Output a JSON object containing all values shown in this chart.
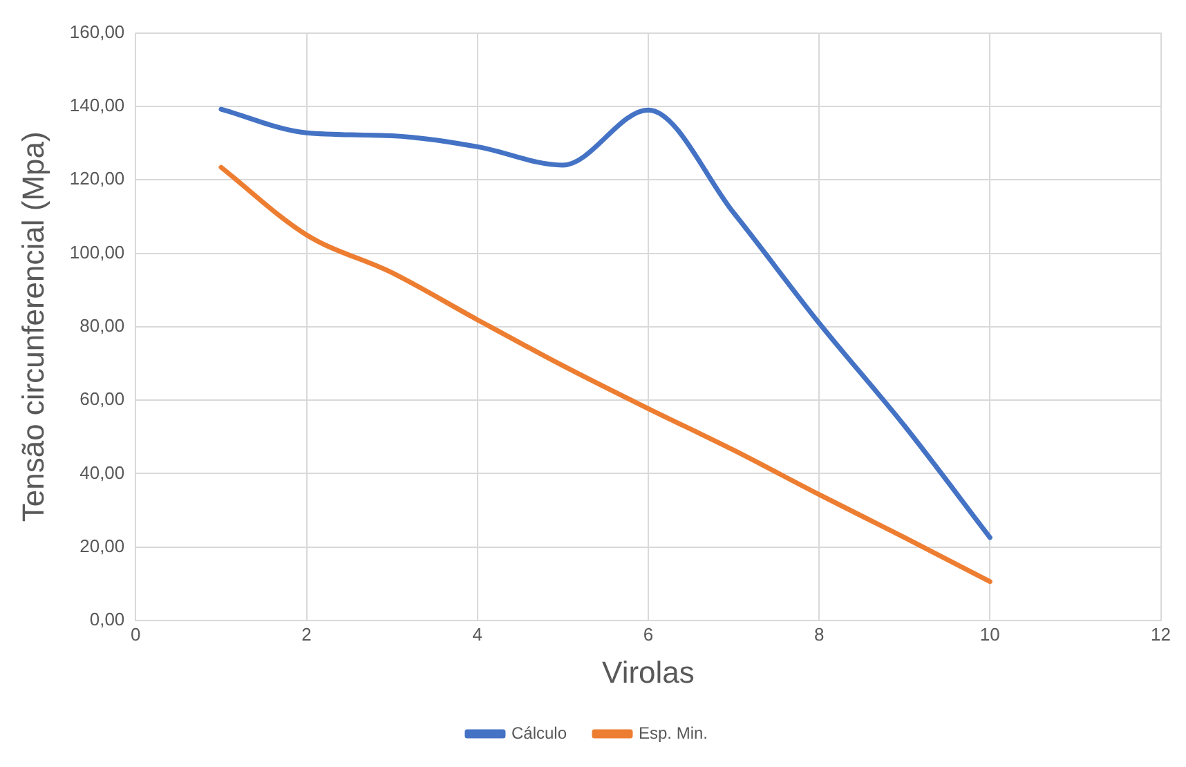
{
  "chart_data": {
    "type": "line",
    "xlabel": "Virolas",
    "ylabel": "Tensão circunferencial (Mpa)",
    "x": [
      1,
      2,
      3,
      4,
      5,
      6,
      7,
      8,
      9,
      10
    ],
    "series": [
      {
        "name": "Cálculo",
        "color": "#4472c4",
        "values": [
          139.2,
          132.8,
          132,
          129,
          124,
          139,
          111,
          81,
          53,
          22.6
        ]
      },
      {
        "name": "Esp. Min.",
        "color": "#ed7d31",
        "values": [
          123.4,
          105,
          94.7,
          81.9,
          69.4,
          57.7,
          46.4,
          34.3,
          22.6,
          10.6
        ]
      }
    ],
    "xlim": [
      0,
      12
    ],
    "xticks": [
      0,
      2,
      4,
      6,
      8,
      10,
      12
    ],
    "ylim": [
      0,
      160
    ],
    "yticks": [
      {
        "value": 0,
        "label": "0,00"
      },
      {
        "value": 20,
        "label": "20,00"
      },
      {
        "value": 40,
        "label": "40,00"
      },
      {
        "value": 60,
        "label": "60,00"
      },
      {
        "value": 80,
        "label": "80,00"
      },
      {
        "value": 100,
        "label": "100,00"
      },
      {
        "value": 120,
        "label": "120,00"
      },
      {
        "value": 140,
        "label": "140,00"
      },
      {
        "value": 160,
        "label": "160,00"
      }
    ],
    "grid": true,
    "legend": "bottom",
    "marker": "none",
    "line_style": "solid"
  }
}
